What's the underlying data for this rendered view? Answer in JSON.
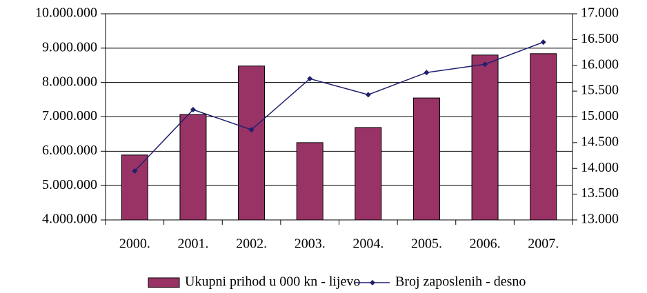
{
  "chart_data": {
    "type": "bar",
    "categories": [
      "2000.",
      "2001.",
      "2002.",
      "2003.",
      "2004.",
      "2005.",
      "2006.",
      "2007."
    ],
    "series": [
      {
        "name": "Ukupni prihod u 000 kn - lijevo",
        "type": "bar",
        "color": "#993366",
        "values": [
          5890000,
          7070000,
          8480000,
          6250000,
          6690000,
          7550000,
          8800000,
          8840000
        ]
      },
      {
        "name": "Broj zaposlenih - desno",
        "type": "line",
        "axis": "y2",
        "color": "#1f1f6e",
        "values": [
          13950,
          15140,
          14750,
          15740,
          15430,
          15860,
          16020,
          16450
        ]
      }
    ],
    "ylim": [
      4000000,
      10000000
    ],
    "yticks": [
      {
        "value": 4000000,
        "label": "4.000.000"
      },
      {
        "value": 5000000,
        "label": "5.000.000"
      },
      {
        "value": 6000000,
        "label": "6.000.000"
      },
      {
        "value": 7000000,
        "label": "7.000.000"
      },
      {
        "value": 8000000,
        "label": "8.000.000"
      },
      {
        "value": 9000000,
        "label": "9.000.000"
      },
      {
        "value": 10000000,
        "label": "10.000.000"
      }
    ],
    "y2lim": [
      13000,
      17000
    ],
    "y2ticks": [
      {
        "value": 13000,
        "label": "13.000"
      },
      {
        "value": 13500,
        "label": "13.500"
      },
      {
        "value": 14000,
        "label": "14.000"
      },
      {
        "value": 14500,
        "label": "14.500"
      },
      {
        "value": 15000,
        "label": "15.000"
      },
      {
        "value": 15500,
        "label": "15.500"
      },
      {
        "value": 16000,
        "label": "16.000"
      },
      {
        "value": 16500,
        "label": "16.500"
      },
      {
        "value": 17000,
        "label": "17.000"
      }
    ],
    "grid": true,
    "legend": "bottom"
  }
}
